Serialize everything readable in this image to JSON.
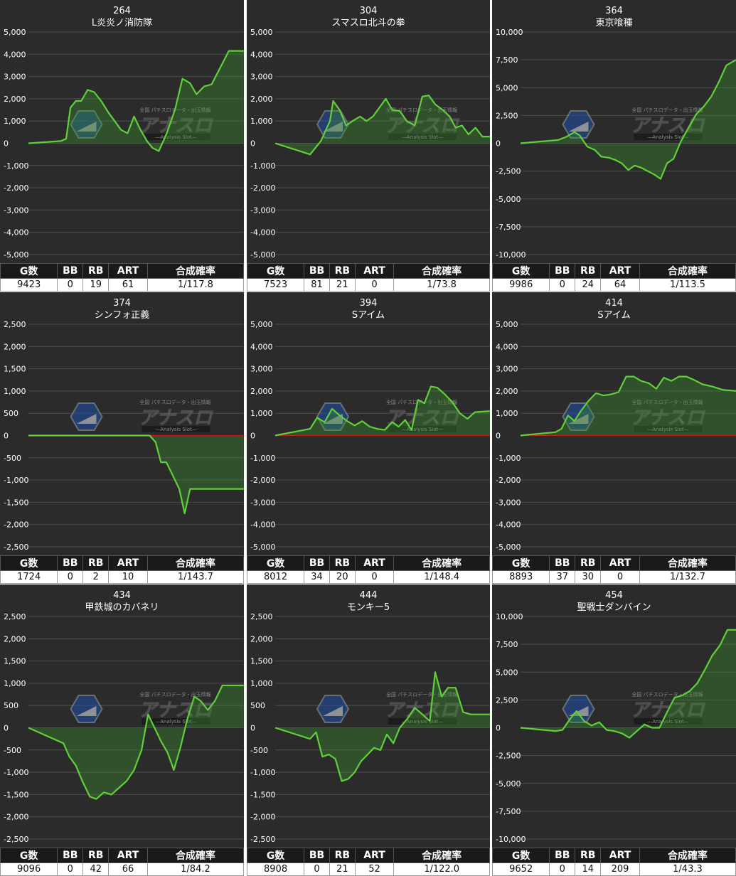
{
  "logo": {
    "top_text": "全国 パチスロデータ・出玉情報",
    "main_text": "アナスロ",
    "sub_text": "—Analysis Slot—"
  },
  "colors": {
    "panel_bg": "#2b2b2b",
    "grid": "#4e4e4e",
    "zero_line": "#c81e1e",
    "series_line": "#5fd03a",
    "series_fill": "rgba(60,150,45,0.35)"
  },
  "table_headers": [
    "G数",
    "BB",
    "RB",
    "ART",
    "合成確率"
  ],
  "panels": [
    {
      "number": "264",
      "name": "L炎炎ノ消防隊",
      "stats": {
        "g": "9423",
        "bb": "0",
        "rb": "19",
        "art": "61",
        "rate": "1/117.8"
      },
      "chart_data": {
        "type": "line",
        "ylim": [
          -5000,
          5000
        ],
        "yticks": [
          "5,000",
          "4,000",
          "3,000",
          "2,000",
          "1,000",
          "0",
          "-1,000",
          "-2,000",
          "-3,000",
          "-4,000",
          "-5,000"
        ],
        "points": [
          [
            0,
            0
          ],
          [
            600,
            100
          ],
          [
            700,
            200
          ],
          [
            780,
            1600
          ],
          [
            880,
            1900
          ],
          [
            980,
            1900
          ],
          [
            1100,
            2400
          ],
          [
            1220,
            2300
          ],
          [
            1350,
            1900
          ],
          [
            1480,
            1400
          ],
          [
            1600,
            1000
          ],
          [
            1720,
            600
          ],
          [
            1840,
            450
          ],
          [
            1960,
            1200
          ],
          [
            2080,
            600
          ],
          [
            2200,
            100
          ],
          [
            2300,
            -200
          ],
          [
            2420,
            -350
          ],
          [
            2560,
            400
          ],
          [
            2720,
            1500
          ],
          [
            2860,
            2900
          ],
          [
            3000,
            2700
          ],
          [
            3120,
            2200
          ],
          [
            3260,
            2550
          ],
          [
            3400,
            2650
          ],
          [
            3560,
            3400
          ],
          [
            3720,
            4150
          ],
          [
            4000,
            4150
          ]
        ]
      }
    },
    {
      "number": "304",
      "name": "スマスロ北斗の拳",
      "stats": {
        "g": "7523",
        "bb": "81",
        "rb": "21",
        "art": "0",
        "rate": "1/73.8"
      },
      "chart_data": {
        "type": "line",
        "ylim": [
          -5000,
          5000
        ],
        "yticks": [
          "5,000",
          "4,000",
          "3,000",
          "2,000",
          "1,000",
          "0",
          "-1,000",
          "-2,000",
          "-3,000",
          "-4,000",
          "-5,000"
        ],
        "points": [
          [
            0,
            0
          ],
          [
            650,
            -500
          ],
          [
            850,
            100
          ],
          [
            1020,
            1000
          ],
          [
            1080,
            1900
          ],
          [
            1200,
            1500
          ],
          [
            1320,
            800
          ],
          [
            1440,
            1000
          ],
          [
            1580,
            1200
          ],
          [
            1700,
            1000
          ],
          [
            1820,
            1200
          ],
          [
            1940,
            1600
          ],
          [
            2060,
            2000
          ],
          [
            2180,
            1500
          ],
          [
            2320,
            1450
          ],
          [
            2450,
            1000
          ],
          [
            2600,
            800
          ],
          [
            2740,
            2100
          ],
          [
            2860,
            2150
          ],
          [
            2980,
            1750
          ],
          [
            3120,
            1500
          ],
          [
            3250,
            1200
          ],
          [
            3360,
            700
          ],
          [
            3480,
            800
          ],
          [
            3600,
            400
          ],
          [
            3730,
            700
          ],
          [
            3860,
            300
          ],
          [
            4000,
            300
          ]
        ]
      }
    },
    {
      "number": "364",
      "name": "東京喰種",
      "stats": {
        "g": "9986",
        "bb": "0",
        "rb": "24",
        "art": "64",
        "rate": "1/113.5"
      },
      "chart_data": {
        "type": "line",
        "ylim": [
          -10000,
          10000
        ],
        "yticks": [
          "10,000",
          "7,500",
          "5,000",
          "2,500",
          "0",
          "-2,500",
          "-5,000",
          "-7,500",
          "-10,000"
        ],
        "points": [
          [
            0,
            0
          ],
          [
            700,
            300
          ],
          [
            860,
            600
          ],
          [
            1000,
            1000
          ],
          [
            1100,
            700
          ],
          [
            1240,
            -300
          ],
          [
            1380,
            -600
          ],
          [
            1500,
            -1200
          ],
          [
            1640,
            -1300
          ],
          [
            1760,
            -1500
          ],
          [
            1880,
            -1800
          ],
          [
            2000,
            -2400
          ],
          [
            2120,
            -2000
          ],
          [
            2240,
            -2200
          ],
          [
            2360,
            -2500
          ],
          [
            2480,
            -2800
          ],
          [
            2600,
            -3200
          ],
          [
            2720,
            -1800
          ],
          [
            2840,
            -1400
          ],
          [
            2980,
            200
          ],
          [
            3120,
            1400
          ],
          [
            3260,
            2600
          ],
          [
            3400,
            3300
          ],
          [
            3540,
            4200
          ],
          [
            3680,
            5500
          ],
          [
            3820,
            7000
          ],
          [
            4000,
            7500
          ]
        ]
      }
    },
    {
      "number": "374",
      "name": "シンフォ正義",
      "stats": {
        "g": "1724",
        "bb": "0",
        "rb": "2",
        "art": "10",
        "rate": "1/143.7"
      },
      "chart_data": {
        "type": "line",
        "ylim": [
          -2500,
          2500
        ],
        "yticks": [
          "2,500",
          "2,000",
          "1,500",
          "1,000",
          "500",
          "0",
          "-500",
          "-1,000",
          "-1,500",
          "-2,000",
          "-2,500"
        ],
        "points": [
          [
            0,
            0
          ],
          [
            2250,
            0
          ],
          [
            2360,
            -150
          ],
          [
            2460,
            -600
          ],
          [
            2560,
            -600
          ],
          [
            2680,
            -900
          ],
          [
            2800,
            -1200
          ],
          [
            2900,
            -1750
          ],
          [
            3000,
            -1200
          ],
          [
            4000,
            -1200
          ]
        ]
      }
    },
    {
      "number": "394",
      "name": "Sアイム",
      "stats": {
        "g": "8012",
        "bb": "34",
        "rb": "20",
        "art": "0",
        "rate": "1/148.4"
      },
      "chart_data": {
        "type": "line",
        "ylim": [
          -5000,
          5000
        ],
        "yticks": [
          "5,000",
          "4,000",
          "3,000",
          "2,000",
          "1,000",
          "0",
          "-1,000",
          "-2,000",
          "-3,000",
          "-4,000",
          "-5,000"
        ],
        "points": [
          [
            0,
            0
          ],
          [
            650,
            300
          ],
          [
            780,
            800
          ],
          [
            920,
            600
          ],
          [
            1060,
            1200
          ],
          [
            1200,
            900
          ],
          [
            1340,
            650
          ],
          [
            1480,
            450
          ],
          [
            1620,
            650
          ],
          [
            1760,
            400
          ],
          [
            1900,
            300
          ],
          [
            2040,
            250
          ],
          [
            2180,
            600
          ],
          [
            2300,
            400
          ],
          [
            2420,
            700
          ],
          [
            2540,
            250
          ],
          [
            2660,
            1600
          ],
          [
            2780,
            1450
          ],
          [
            2900,
            2200
          ],
          [
            3020,
            2150
          ],
          [
            3160,
            1850
          ],
          [
            3300,
            1500
          ],
          [
            3440,
            1000
          ],
          [
            3580,
            750
          ],
          [
            3720,
            1050
          ],
          [
            4000,
            1100
          ]
        ]
      }
    },
    {
      "number": "414",
      "name": "Sアイム",
      "stats": {
        "g": "8893",
        "bb": "37",
        "rb": "30",
        "art": "0",
        "rate": "1/132.7"
      },
      "chart_data": {
        "type": "line",
        "ylim": [
          -5000,
          5000
        ],
        "yticks": [
          "5,000",
          "4,000",
          "3,000",
          "2,000",
          "1,000",
          "0",
          "-1,000",
          "-2,000",
          "-3,000",
          "-4,000",
          "-5,000"
        ],
        "points": [
          [
            0,
            0
          ],
          [
            650,
            150
          ],
          [
            760,
            300
          ],
          [
            880,
            900
          ],
          [
            1000,
            650
          ],
          [
            1120,
            1100
          ],
          [
            1260,
            1550
          ],
          [
            1400,
            1900
          ],
          [
            1540,
            1800
          ],
          [
            1680,
            1850
          ],
          [
            1820,
            1950
          ],
          [
            1960,
            2650
          ],
          [
            2100,
            2650
          ],
          [
            2240,
            2450
          ],
          [
            2380,
            2350
          ],
          [
            2520,
            2100
          ],
          [
            2660,
            2600
          ],
          [
            2800,
            2450
          ],
          [
            2940,
            2650
          ],
          [
            3080,
            2650
          ],
          [
            3220,
            2500
          ],
          [
            3380,
            2300
          ],
          [
            3560,
            2200
          ],
          [
            3760,
            2050
          ],
          [
            4000,
            2000
          ]
        ]
      }
    },
    {
      "number": "434",
      "name": "甲鉄城のカバネリ",
      "stats": {
        "g": "9096",
        "bb": "0",
        "rb": "42",
        "art": "66",
        "rate": "1/84.2"
      },
      "chart_data": {
        "type": "line",
        "ylim": [
          -2500,
          2500
        ],
        "yticks": [
          "2,500",
          "2,000",
          "1,500",
          "1,000",
          "500",
          "0",
          "-500",
          "-1,000",
          "-1,500",
          "-2,000",
          "-2,500"
        ],
        "points": [
          [
            0,
            0
          ],
          [
            650,
            -350
          ],
          [
            760,
            -650
          ],
          [
            880,
            -850
          ],
          [
            1000,
            -1200
          ],
          [
            1140,
            -1550
          ],
          [
            1260,
            -1600
          ],
          [
            1400,
            -1450
          ],
          [
            1540,
            -1500
          ],
          [
            1680,
            -1350
          ],
          [
            1820,
            -1200
          ],
          [
            1960,
            -950
          ],
          [
            2100,
            -500
          ],
          [
            2220,
            300
          ],
          [
            2340,
            0
          ],
          [
            2460,
            -300
          ],
          [
            2580,
            -550
          ],
          [
            2700,
            -950
          ],
          [
            2820,
            -450
          ],
          [
            2950,
            200
          ],
          [
            3080,
            700
          ],
          [
            3200,
            600
          ],
          [
            3330,
            400
          ],
          [
            3460,
            600
          ],
          [
            3600,
            950
          ],
          [
            4000,
            950
          ]
        ]
      }
    },
    {
      "number": "444",
      "name": "モンキー5",
      "stats": {
        "g": "8908",
        "bb": "0",
        "rb": "21",
        "art": "52",
        "rate": "1/122.0"
      },
      "chart_data": {
        "type": "line",
        "ylim": [
          -2500,
          2500
        ],
        "yticks": [
          "2,500",
          "2,000",
          "1,500",
          "1,000",
          "500",
          "0",
          "-500",
          "-1,000",
          "-1,500",
          "-2,000",
          "-2,500"
        ],
        "points": [
          [
            0,
            0
          ],
          [
            650,
            -250
          ],
          [
            760,
            -100
          ],
          [
            880,
            -650
          ],
          [
            1000,
            -600
          ],
          [
            1120,
            -700
          ],
          [
            1240,
            -1200
          ],
          [
            1360,
            -1150
          ],
          [
            1480,
            -1000
          ],
          [
            1600,
            -750
          ],
          [
            1720,
            -600
          ],
          [
            1840,
            -450
          ],
          [
            1960,
            -500
          ],
          [
            2080,
            -150
          ],
          [
            2200,
            -350
          ],
          [
            2320,
            0
          ],
          [
            2460,
            200
          ],
          [
            2600,
            450
          ],
          [
            2740,
            300
          ],
          [
            2880,
            150
          ],
          [
            2980,
            1250
          ],
          [
            3100,
            700
          ],
          [
            3220,
            900
          ],
          [
            3360,
            900
          ],
          [
            3500,
            350
          ],
          [
            3640,
            300
          ],
          [
            4000,
            300
          ]
        ]
      }
    },
    {
      "number": "454",
      "name": "聖戦士ダンバイン",
      "stats": {
        "g": "9652",
        "bb": "0",
        "rb": "14",
        "art": "209",
        "rate": "1/43.3"
      },
      "chart_data": {
        "type": "line",
        "ylim": [
          -10000,
          10000
        ],
        "yticks": [
          "10,000",
          "7,500",
          "5,000",
          "2,500",
          "0",
          "-2,500",
          "-5,000",
          "-7,500",
          "-10,000"
        ],
        "points": [
          [
            0,
            0
          ],
          [
            650,
            -300
          ],
          [
            780,
            -200
          ],
          [
            920,
            800
          ],
          [
            1040,
            1500
          ],
          [
            1180,
            600
          ],
          [
            1320,
            200
          ],
          [
            1460,
            500
          ],
          [
            1600,
            -200
          ],
          [
            1740,
            -300
          ],
          [
            1880,
            -500
          ],
          [
            2020,
            -900
          ],
          [
            2160,
            -300
          ],
          [
            2300,
            300
          ],
          [
            2440,
            0
          ],
          [
            2580,
            0
          ],
          [
            2720,
            1400
          ],
          [
            2860,
            2700
          ],
          [
            3000,
            2900
          ],
          [
            3140,
            3300
          ],
          [
            3280,
            4000
          ],
          [
            3420,
            5200
          ],
          [
            3560,
            6500
          ],
          [
            3700,
            7400
          ],
          [
            3840,
            8800
          ],
          [
            4000,
            8800
          ]
        ]
      }
    }
  ]
}
